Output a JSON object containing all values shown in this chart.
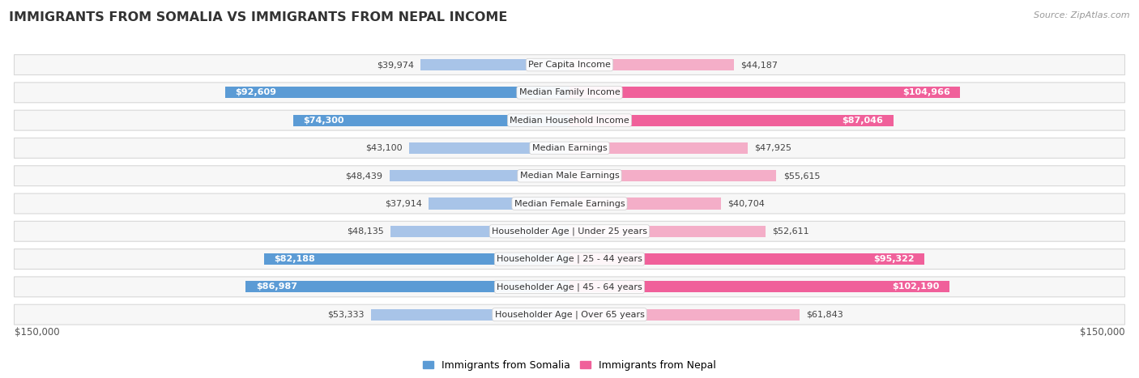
{
  "title": "IMMIGRANTS FROM SOMALIA VS IMMIGRANTS FROM NEPAL INCOME",
  "source": "Source: ZipAtlas.com",
  "categories": [
    "Per Capita Income",
    "Median Family Income",
    "Median Household Income",
    "Median Earnings",
    "Median Male Earnings",
    "Median Female Earnings",
    "Householder Age | Under 25 years",
    "Householder Age | 25 - 44 years",
    "Householder Age | 45 - 64 years",
    "Householder Age | Over 65 years"
  ],
  "somalia_values": [
    39974,
    92609,
    74300,
    43100,
    48439,
    37914,
    48135,
    82188,
    86987,
    53333
  ],
  "nepal_values": [
    44187,
    104966,
    87046,
    47925,
    55615,
    40704,
    52611,
    95322,
    102190,
    61843
  ],
  "somalia_labels": [
    "$39,974",
    "$92,609",
    "$74,300",
    "$43,100",
    "$48,439",
    "$37,914",
    "$48,135",
    "$82,188",
    "$86,987",
    "$53,333"
  ],
  "nepal_labels": [
    "$44,187",
    "$104,966",
    "$87,046",
    "$47,925",
    "$55,615",
    "$40,704",
    "$52,611",
    "$95,322",
    "$102,190",
    "$61,843"
  ],
  "max_value": 150000,
  "somalia_color_light": "#a8c4e8",
  "somalia_color_dark": "#5b9bd5",
  "nepal_color_light": "#f4aec8",
  "nepal_color_dark": "#f0609a",
  "somalia_dark_threshold": 70000,
  "nepal_dark_threshold": 80000,
  "bg_color": "#ffffff",
  "row_bg": "#f7f7f7",
  "row_border": "#d8d8d8",
  "xlabel_left": "$150,000",
  "xlabel_right": "$150,000",
  "legend_somalia": "Immigrants from Somalia",
  "legend_nepal": "Immigrants from Nepal",
  "label_fontsize": 8.0,
  "category_fontsize": 8.0
}
